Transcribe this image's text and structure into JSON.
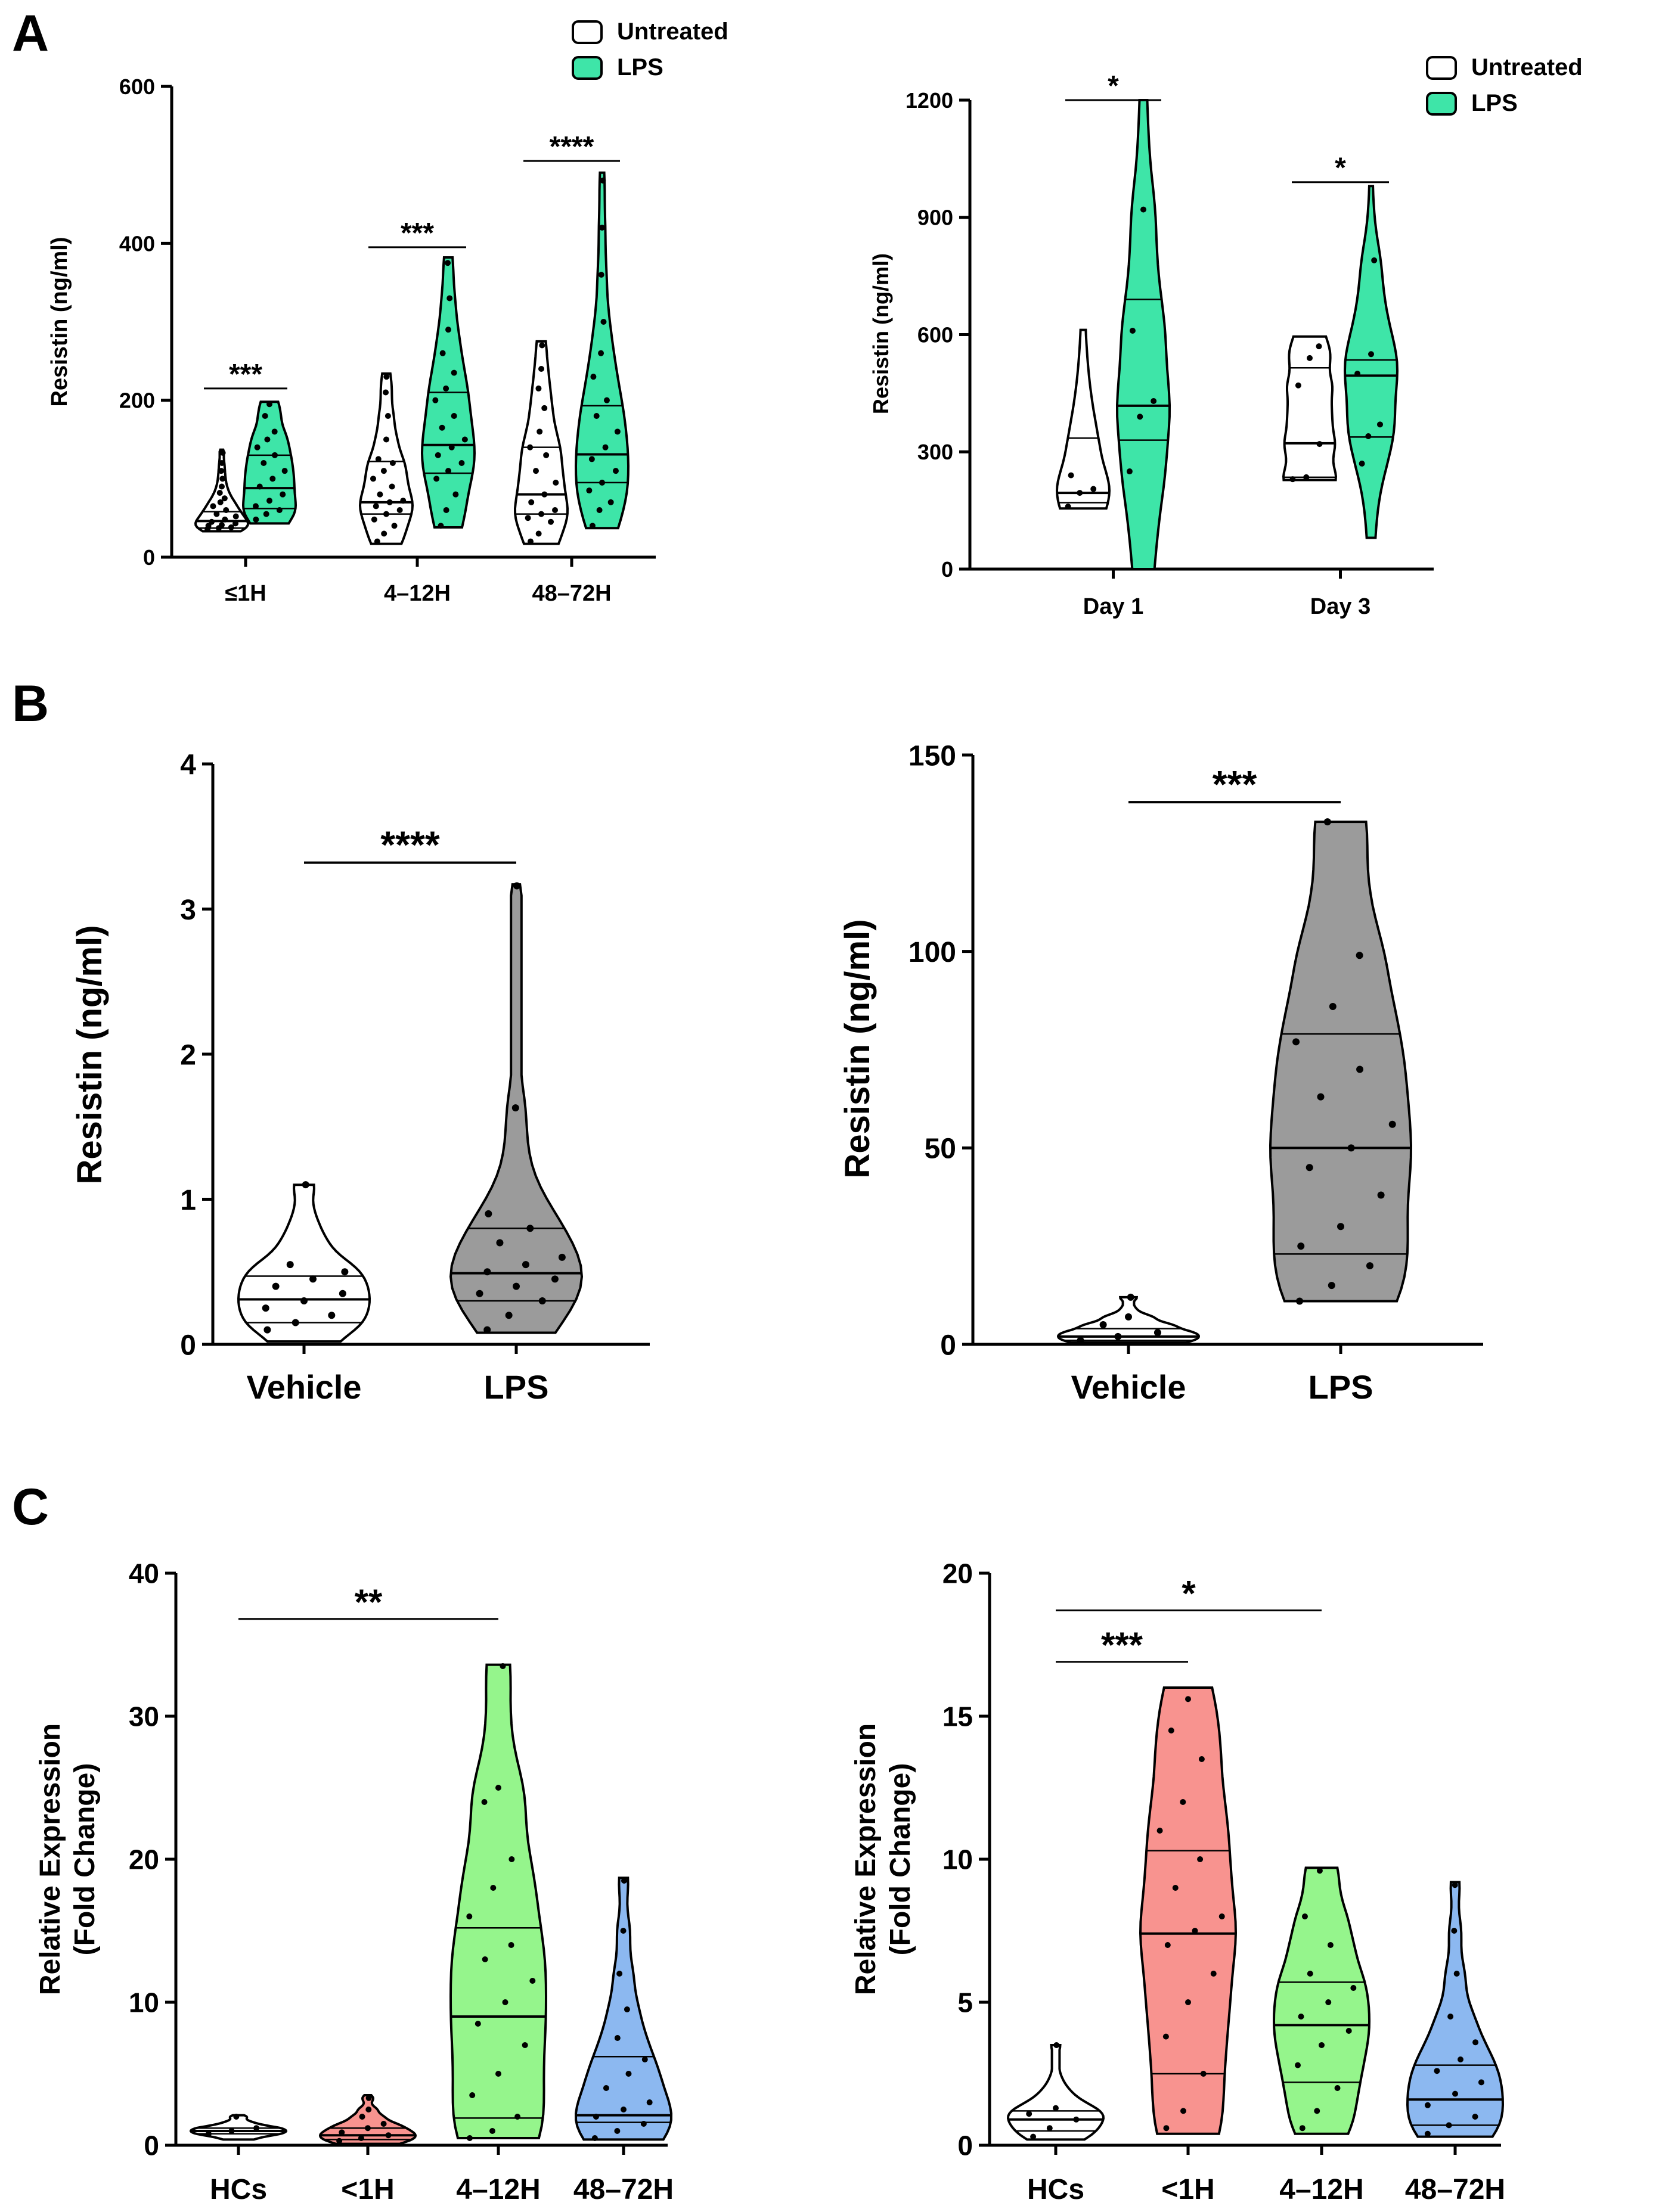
{
  "panel_letters": [
    "A",
    "B",
    "C"
  ],
  "colors": {
    "white_fill": "#ffffff",
    "lps_green": "#3ee5a8",
    "gray": "#9b9b9b",
    "hc": "#ffffff",
    "lt1h": "#f8938f",
    "h4_12": "#95f58c",
    "h48_72": "#8cb8f0"
  },
  "chart_data": [
    {
      "id": "A1",
      "type": "violin",
      "title": "",
      "xlabel": "",
      "ylabel": "Resistin (ng/ml)",
      "ylim": [
        0,
        600
      ],
      "yticks": [
        0,
        200,
        400,
        600
      ],
      "categories": [
        "≤1H",
        "4–12H",
        "48–72H"
      ],
      "legend": {
        "position": "top-right",
        "entries": [
          {
            "label": "Untreated",
            "color": "#ffffff"
          },
          {
            "label": "LPS",
            "color": "#3ee5a8"
          }
        ]
      },
      "series": [
        {
          "name": "Untreated",
          "color": "#ffffff",
          "groups": [
            {
              "category": "≤1H",
              "min": 33,
              "max": 137,
              "median": 46,
              "q1": 37,
              "q3": 58,
              "points": [
                36,
                37,
                38,
                40,
                41,
                43,
                45,
                48,
                52,
                55,
                60,
                65,
                70,
                75,
                82,
                90,
                100,
                110,
                120,
                133
              ]
            },
            {
              "category": "4–12H",
              "min": 17,
              "max": 234,
              "median": 70,
              "q1": 55,
              "q3": 122,
              "points": [
                20,
                30,
                40,
                48,
                55,
                60,
                65,
                70,
                72,
                80,
                90,
                100,
                110,
                120,
                125,
                150,
                180,
                210,
                230
              ]
            },
            {
              "category": "48–72H",
              "min": 17,
              "max": 275,
              "median": 80,
              "q1": 55,
              "q3": 140,
              "points": [
                20,
                30,
                45,
                50,
                55,
                60,
                70,
                80,
                95,
                110,
                130,
                140,
                160,
                190,
                215,
                240,
                270
              ]
            }
          ]
        },
        {
          "name": "LPS",
          "color": "#3ee5a8",
          "groups": [
            {
              "category": "≤1H",
              "min": 43,
              "max": 198,
              "median": 88,
              "q1": 62,
              "q3": 130,
              "points": [
                48,
                55,
                60,
                65,
                72,
                80,
                90,
                100,
                110,
                120,
                130,
                140,
                150,
                160,
                180,
                195
              ]
            },
            {
              "category": "4–12H",
              "min": 38,
              "max": 382,
              "median": 143,
              "q1": 107,
              "q3": 210,
              "points": [
                40,
                60,
                80,
                100,
                110,
                120,
                130,
                140,
                150,
                165,
                180,
                200,
                215,
                235,
                260,
                290,
                330,
                375
              ]
            },
            {
              "category": "48–72H",
              "min": 37,
              "max": 490,
              "median": 131,
              "q1": 95,
              "q3": 193,
              "points": [
                40,
                60,
                70,
                85,
                95,
                110,
                125,
                140,
                160,
                180,
                200,
                230,
                260,
                300,
                360,
                420,
                480
              ]
            }
          ]
        }
      ],
      "significance": [
        {
          "category": "≤1H",
          "label": "***",
          "y": 215
        },
        {
          "category": "4–12H",
          "label": "***",
          "y": 395
        },
        {
          "category": "48–72H",
          "label": "****",
          "y": 505
        }
      ]
    },
    {
      "id": "A2",
      "type": "violin",
      "title": "",
      "xlabel": "",
      "ylabel": "Resistin (ng/ml)",
      "ylim": [
        0,
        1200
      ],
      "yticks": [
        0,
        300,
        600,
        900,
        1200
      ],
      "categories": [
        "Day 1",
        "Day 3"
      ],
      "legend": {
        "position": "top-right",
        "entries": [
          {
            "label": "Untreated",
            "color": "#ffffff"
          },
          {
            "label": "LPS",
            "color": "#3ee5a8"
          }
        ]
      },
      "series": [
        {
          "name": "Untreated",
          "color": "#ffffff",
          "groups": [
            {
              "category": "Day 1",
              "min": 155,
              "max": 612,
              "median": 195,
              "q1": 170,
              "q3": 335,
              "points": [
                160,
                195,
                205,
                240
              ]
            },
            {
              "category": "Day 3",
              "min": 228,
              "max": 595,
              "median": 322,
              "q1": 235,
              "q3": 515,
              "points": [
                230,
                235,
                320,
                470,
                540,
                570
              ]
            }
          ]
        },
        {
          "name": "LPS",
          "color": "#3ee5a8",
          "groups": [
            {
              "category": "Day 1",
              "min": 0,
              "max": 1200,
              "median": 418,
              "q1": 330,
              "q3": 690,
              "points": [
                250,
                390,
                430,
                610,
                920
              ]
            },
            {
              "category": "Day 3",
              "min": 80,
              "max": 980,
              "median": 495,
              "q1": 338,
              "q3": 535,
              "points": [
                270,
                340,
                370,
                500,
                550,
                790
              ]
            }
          ]
        }
      ],
      "significance": [
        {
          "category": "Day 1",
          "label": "*",
          "y": 1200
        },
        {
          "category": "Day 3",
          "label": "*",
          "y": 990
        }
      ]
    },
    {
      "id": "B1",
      "type": "violin",
      "title": "",
      "xlabel": "",
      "ylabel": "Resistin (ng/ml)",
      "ylim": [
        0,
        4
      ],
      "yticks": [
        0,
        1,
        2,
        3,
        4
      ],
      "categories": [
        "Vehicle",
        "LPS"
      ],
      "series": [
        {
          "name": "Vehicle",
          "color": "#ffffff",
          "groups": [
            {
              "category": "Vehicle",
              "min": 0.02,
              "max": 1.1,
              "median": 0.31,
              "q1": 0.15,
              "q3": 0.47,
              "points": [
                0.1,
                0.15,
                0.2,
                0.25,
                0.3,
                0.35,
                0.4,
                0.45,
                0.5,
                0.55,
                1.1
              ]
            }
          ]
        },
        {
          "name": "LPS",
          "color": "#9b9b9b",
          "groups": [
            {
              "category": "LPS",
              "min": 0.08,
              "max": 3.17,
              "median": 0.49,
              "q1": 0.3,
              "q3": 0.8,
              "points": [
                0.1,
                0.2,
                0.3,
                0.35,
                0.4,
                0.45,
                0.5,
                0.55,
                0.6,
                0.7,
                0.8,
                0.9,
                1.63,
                3.16
              ]
            }
          ]
        }
      ],
      "significance": [
        {
          "from": "Vehicle",
          "to": "LPS",
          "label": "****",
          "y": 3.32
        }
      ]
    },
    {
      "id": "B2",
      "type": "violin",
      "title": "",
      "xlabel": "",
      "ylabel": "Resistin (ng/ml)",
      "ylim": [
        0,
        150
      ],
      "yticks": [
        0,
        50,
        100,
        150
      ],
      "categories": [
        "Vehicle",
        "LPS"
      ],
      "series": [
        {
          "name": "Vehicle",
          "color": "#ffffff",
          "groups": [
            {
              "category": "Vehicle",
              "min": 0.5,
              "max": 12,
              "median": 2,
              "q1": 1,
              "q3": 4,
              "points": [
                1,
                2,
                3,
                5,
                7,
                12
              ]
            }
          ]
        },
        {
          "name": "LPS",
          "color": "#9b9b9b",
          "groups": [
            {
              "category": "LPS",
              "min": 11,
              "max": 133,
              "median": 50,
              "q1": 23,
              "q3": 79,
              "points": [
                11,
                15,
                20,
                25,
                30,
                38,
                45,
                50,
                56,
                63,
                70,
                77,
                86,
                99,
                133
              ]
            }
          ]
        }
      ],
      "significance": [
        {
          "from": "Vehicle",
          "to": "LPS",
          "label": "***",
          "y": 138
        }
      ]
    },
    {
      "id": "C1",
      "type": "violin",
      "title": "",
      "xlabel": "",
      "ylabel": "Relative Expression (Fold Change)",
      "ylabel_lines": [
        "Relative Expression",
        "(Fold Change)"
      ],
      "ylim": [
        0,
        40
      ],
      "yticks": [
        0,
        10,
        20,
        30,
        40
      ],
      "categories": [
        "HCs",
        "<1H",
        "4–12H",
        "48–72H"
      ],
      "series": [
        {
          "name": "HCs",
          "color": "#ffffff",
          "groups": [
            {
              "category": "HCs",
              "min": 0.4,
              "max": 2.1,
              "median": 1.0,
              "q1": 0.8,
              "q3": 1.2,
              "points": [
                0.8,
                1.0,
                1.2,
                2.0
              ]
            }
          ]
        },
        {
          "name": "<1H",
          "color": "#f8938f",
          "groups": [
            {
              "category": "<1H",
              "min": 0.1,
              "max": 3.5,
              "median": 0.7,
              "q1": 0.4,
              "q3": 1.2,
              "points": [
                0.3,
                0.5,
                0.7,
                0.9,
                1.2,
                1.5,
                2.0,
                2.5,
                3.3
              ]
            }
          ]
        },
        {
          "name": "4–12H",
          "color": "#95f58c",
          "groups": [
            {
              "category": "4–12H",
              "min": 0.5,
              "max": 33.6,
              "median": 9.0,
              "q1": 1.9,
              "q3": 15.2,
              "points": [
                0.5,
                1.0,
                2.0,
                3.5,
                5.0,
                7.0,
                8.5,
                10.0,
                11.5,
                13.0,
                14.0,
                16.0,
                18.0,
                20.0,
                24.0,
                25.0,
                33.5
              ]
            }
          ]
        },
        {
          "name": "48–72H",
          "color": "#8cb8f0",
          "groups": [
            {
              "category": "48–72H",
              "min": 0.4,
              "max": 18.7,
              "median": 2.1,
              "q1": 1.6,
              "q3": 6.2,
              "points": [
                0.5,
                1.0,
                1.5,
                2.0,
                2.5,
                3.0,
                4.0,
                5.0,
                6.0,
                7.5,
                9.5,
                12.0,
                15.0,
                18.5
              ]
            }
          ]
        }
      ],
      "significance": [
        {
          "from": "HCs",
          "to": "4–12H",
          "label": "**",
          "y": 36.8
        }
      ]
    },
    {
      "id": "C2",
      "type": "violin",
      "title": "",
      "xlabel": "",
      "ylabel": "Relative Expression (Fold Change)",
      "ylabel_lines": [
        "Relative Expression",
        "(Fold Change)"
      ],
      "ylim": [
        0,
        20
      ],
      "yticks": [
        0,
        5,
        10,
        15,
        20
      ],
      "categories": [
        "HCs",
        "<1H",
        "4–12H",
        "48–72H"
      ],
      "series": [
        {
          "name": "HCs",
          "color": "#ffffff",
          "groups": [
            {
              "category": "HCs",
              "min": 0.2,
              "max": 3.5,
              "median": 0.9,
              "q1": 0.5,
              "q3": 1.2,
              "points": [
                0.3,
                0.6,
                0.9,
                1.1,
                1.3,
                3.5
              ]
            }
          ]
        },
        {
          "name": "<1H",
          "color": "#f8938f",
          "groups": [
            {
              "category": "<1H",
              "min": 0.4,
              "max": 16.0,
              "median": 7.4,
              "q1": 2.5,
              "q3": 10.3,
              "points": [
                0.6,
                1.2,
                2.5,
                3.8,
                5.0,
                6.0,
                7.0,
                7.5,
                8.0,
                9.0,
                10.0,
                11.0,
                12.0,
                13.5,
                14.5,
                15.6
              ]
            }
          ]
        },
        {
          "name": "4–12H",
          "color": "#95f58c",
          "groups": [
            {
              "category": "4–12H",
              "min": 0.4,
              "max": 9.7,
              "median": 4.2,
              "q1": 2.2,
              "q3": 5.7,
              "points": [
                0.6,
                1.2,
                2.0,
                2.8,
                3.5,
                4.0,
                4.5,
                5.0,
                5.5,
                6.0,
                7.0,
                8.0,
                9.6
              ]
            }
          ]
        },
        {
          "name": "48–72H",
          "color": "#8cb8f0",
          "groups": [
            {
              "category": "48–72H",
              "min": 0.3,
              "max": 9.2,
              "median": 1.6,
              "q1": 0.7,
              "q3": 2.8,
              "points": [
                0.4,
                0.7,
                1.0,
                1.4,
                1.8,
                2.2,
                2.6,
                3.0,
                3.6,
                4.5,
                6.0,
                7.5,
                9.1
              ]
            }
          ]
        }
      ],
      "significance": [
        {
          "from": "HCs",
          "to": "<1H",
          "label": "***",
          "y": 16.9
        },
        {
          "from": "HCs",
          "to": "4–12H",
          "label": "*",
          "y": 18.7
        }
      ]
    }
  ]
}
